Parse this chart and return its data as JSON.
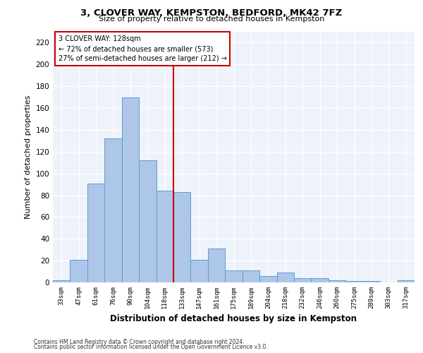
{
  "title": "3, CLOVER WAY, KEMPSTON, BEDFORD, MK42 7FZ",
  "subtitle": "Size of property relative to detached houses in Kempston",
  "xlabel": "Distribution of detached houses by size in Kempston",
  "ylabel": "Number of detached properties",
  "footnote1": "Contains HM Land Registry data © Crown copyright and database right 2024.",
  "footnote2": "Contains public sector information licensed under the Open Government Licence v3.0.",
  "annotation_line1": "3 CLOVER WAY: 128sqm",
  "annotation_line2": "← 72% of detached houses are smaller (573)",
  "annotation_line3": "27% of semi-detached houses are larger (212) →",
  "bar_categories": [
    "33sqm",
    "47sqm",
    "61sqm",
    "76sqm",
    "90sqm",
    "104sqm",
    "118sqm",
    "133sqm",
    "147sqm",
    "161sqm",
    "175sqm",
    "189sqm",
    "204sqm",
    "218sqm",
    "232sqm",
    "246sqm",
    "260sqm",
    "275sqm",
    "289sqm",
    "303sqm",
    "317sqm"
  ],
  "bar_values": [
    2,
    21,
    91,
    132,
    170,
    112,
    84,
    83,
    21,
    31,
    11,
    11,
    6,
    9,
    4,
    4,
    2,
    1,
    1,
    0,
    2
  ],
  "bar_color": "#aec6e8",
  "bar_edge_color": "#5a9fd4",
  "vline_color": "#cc0000",
  "annotation_box_color": "#cc0000",
  "background_color": "#eef2fa",
  "grid_color": "#ffffff",
  "ylim": [
    0,
    230
  ],
  "yticks": [
    0,
    20,
    40,
    60,
    80,
    100,
    120,
    140,
    160,
    180,
    200,
    220
  ],
  "vline_position": 6.5
}
